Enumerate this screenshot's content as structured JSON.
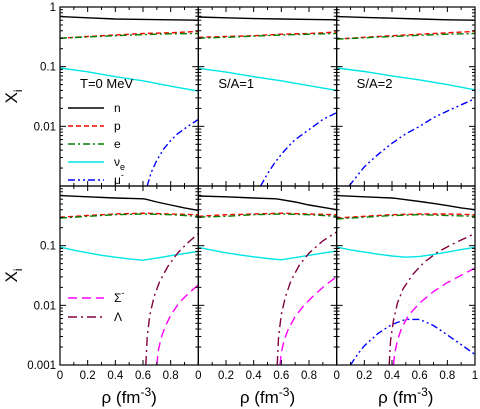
{
  "chart_data": {
    "type": "line",
    "panel_grid": {
      "rows": 2,
      "cols": 3
    },
    "ylabel": "X",
    "ylabel_sub": "i",
    "xlabel": "ρ (fm",
    "xlabel_sup": "-3",
    "xlabel_close": ")",
    "xlim": [
      0,
      1
    ],
    "ylim": [
      0.001,
      1
    ],
    "yscale": "log",
    "x_ticks": [
      0,
      0.2,
      0.4,
      0.6,
      0.8,
      1
    ],
    "x_tick_labels": [
      "0",
      "0.2",
      "0.4",
      "0.6",
      "0.8",
      "1"
    ],
    "y_ticks": [
      0.001,
      0.01,
      0.1,
      1
    ],
    "y_tick_labels": [
      "0.001",
      "0.01",
      "0.1",
      "1"
    ],
    "x_tick_labels_shown": [
      [
        "0",
        "0.2",
        "0.4",
        "0.6",
        "0.8"
      ],
      [
        "0",
        "0.2",
        "0.4",
        "0.6",
        "0.8"
      ],
      [
        "0",
        "0.2",
        "0.4",
        "0.6",
        "0.8",
        "1"
      ]
    ],
    "y_tick_labels_shown": [
      [
        "0.01",
        "0.1",
        "1"
      ],
      [
        "0.001",
        "0.01",
        "0.1"
      ]
    ],
    "panel_labels": [
      "T=0 MeV",
      "S/A=1",
      "S/A=2"
    ],
    "legends": [
      {
        "panel": [
          0,
          0
        ],
        "entries": [
          {
            "label": "n",
            "series": "n"
          },
          {
            "label": "p",
            "series": "p"
          },
          {
            "label": "e",
            "series": "e"
          },
          {
            "label": "ν",
            "sub": "e",
            "series": "nu_e"
          },
          {
            "label": "μ",
            "sup": "-",
            "series": "mu"
          }
        ]
      },
      {
        "panel": [
          1,
          0
        ],
        "entries": [
          {
            "label": "Σ",
            "sup": "-",
            "series": "sigma"
          },
          {
            "label": "Λ",
            "series": "lambda"
          }
        ]
      }
    ],
    "series_styles": {
      "n": {
        "color": "#000000",
        "dash": ""
      },
      "p": {
        "color": "#ff0000",
        "dash": "5,3"
      },
      "e": {
        "color": "#008000",
        "dash": "7,3,2,3"
      },
      "nu_e": {
        "color": "#00e5e5",
        "dash": ""
      },
      "mu": {
        "color": "#0000ff",
        "dash": "7,3,2,3,2,3"
      },
      "sigma": {
        "color": "#ff00ff",
        "dash": "9,5"
      },
      "lambda": {
        "color": "#800040",
        "dash": "9,4,2,4"
      }
    },
    "panels": [
      {
        "row": 0,
        "col": 0,
        "series": [
          {
            "key": "n",
            "x": [
              0,
              0.2,
              0.4,
              0.6,
              0.8,
              1
            ],
            "y": [
              0.69,
              0.66,
              0.63,
              0.62,
              0.61,
              0.6
            ]
          },
          {
            "key": "p",
            "x": [
              0,
              0.2,
              0.4,
              0.6,
              0.8,
              1
            ],
            "y": [
              0.3,
              0.32,
              0.34,
              0.36,
              0.37,
              0.39
            ]
          },
          {
            "key": "e",
            "x": [
              0,
              0.2,
              0.4,
              0.6,
              0.8,
              1
            ],
            "y": [
              0.3,
              0.315,
              0.33,
              0.345,
              0.355,
              0.36
            ]
          },
          {
            "key": "nu_e",
            "x": [
              0,
              0.2,
              0.4,
              0.6,
              0.8,
              1
            ],
            "y": [
              0.095,
              0.082,
              0.068,
              0.058,
              0.047,
              0.039
            ]
          },
          {
            "key": "mu",
            "x": [
              0.63,
              0.66,
              0.7,
              0.75,
              0.8,
              0.85,
              0.9,
              0.95,
              1
            ],
            "y": [
              0.001,
              0.0017,
              0.0027,
              0.0042,
              0.0058,
              0.0075,
              0.0091,
              0.011,
              0.013
            ]
          }
        ]
      },
      {
        "row": 0,
        "col": 1,
        "series": [
          {
            "key": "n",
            "x": [
              0,
              0.2,
              0.4,
              0.6,
              0.8,
              1
            ],
            "y": [
              0.68,
              0.66,
              0.64,
              0.63,
              0.62,
              0.61
            ]
          },
          {
            "key": "p",
            "x": [
              0,
              0.2,
              0.4,
              0.6,
              0.8,
              1
            ],
            "y": [
              0.31,
              0.32,
              0.33,
              0.35,
              0.36,
              0.38
            ]
          },
          {
            "key": "e",
            "x": [
              0,
              0.2,
              0.4,
              0.6,
              0.8,
              1
            ],
            "y": [
              0.3,
              0.31,
              0.325,
              0.34,
              0.35,
              0.36
            ]
          },
          {
            "key": "nu_e",
            "x": [
              0,
              0.2,
              0.4,
              0.6,
              0.8,
              1
            ],
            "y": [
              0.094,
              0.081,
              0.068,
              0.058,
              0.048,
              0.04
            ]
          },
          {
            "key": "mu",
            "x": [
              0.45,
              0.5,
              0.55,
              0.6,
              0.65,
              0.7,
              0.8,
              0.9,
              1
            ],
            "y": [
              0.001,
              0.0016,
              0.0024,
              0.0034,
              0.0046,
              0.006,
              0.0088,
              0.013,
              0.017
            ]
          }
        ]
      },
      {
        "row": 0,
        "col": 2,
        "series": [
          {
            "key": "n",
            "x": [
              0,
              0.2,
              0.4,
              0.6,
              0.8,
              1
            ],
            "y": [
              0.69,
              0.67,
              0.65,
              0.63,
              0.61,
              0.6
            ]
          },
          {
            "key": "p",
            "x": [
              0,
              0.2,
              0.4,
              0.6,
              0.8,
              1
            ],
            "y": [
              0.29,
              0.31,
              0.33,
              0.35,
              0.37,
              0.39
            ]
          },
          {
            "key": "e",
            "x": [
              0,
              0.2,
              0.4,
              0.6,
              0.8,
              1
            ],
            "y": [
              0.29,
              0.305,
              0.32,
              0.335,
              0.35,
              0.36
            ]
          },
          {
            "key": "nu_e",
            "x": [
              0,
              0.2,
              0.4,
              0.6,
              0.8,
              1
            ],
            "y": [
              0.095,
              0.083,
              0.07,
              0.06,
              0.05,
              0.041
            ]
          },
          {
            "key": "mu",
            "x": [
              0.09,
              0.15,
              0.2,
              0.3,
              0.4,
              0.5,
              0.6,
              0.7,
              0.8,
              0.9,
              1
            ],
            "y": [
              0.001,
              0.0015,
              0.0021,
              0.0034,
              0.0052,
              0.0075,
              0.01,
              0.014,
              0.018,
              0.023,
              0.029
            ]
          }
        ]
      },
      {
        "row": 1,
        "col": 0,
        "series": [
          {
            "key": "n",
            "x": [
              0,
              0.2,
              0.4,
              0.6,
              0.62,
              0.7,
              0.8,
              0.9,
              1
            ],
            "y": [
              0.69,
              0.66,
              0.63,
              0.61,
              0.6,
              0.54,
              0.48,
              0.43,
              0.39
            ]
          },
          {
            "key": "p",
            "x": [
              0,
              0.2,
              0.4,
              0.6,
              0.8,
              1
            ],
            "y": [
              0.3,
              0.32,
              0.34,
              0.35,
              0.34,
              0.33
            ]
          },
          {
            "key": "e",
            "x": [
              0,
              0.2,
              0.4,
              0.6,
              0.8,
              1
            ],
            "y": [
              0.29,
              0.31,
              0.33,
              0.34,
              0.33,
              0.31
            ]
          },
          {
            "key": "nu_e",
            "x": [
              0,
              0.1,
              0.2,
              0.3,
              0.4,
              0.5,
              0.6,
              0.7,
              0.8,
              0.9,
              1
            ],
            "y": [
              0.095,
              0.084,
              0.076,
              0.069,
              0.064,
              0.06,
              0.057,
              0.062,
              0.068,
              0.074,
              0.08
            ]
          },
          {
            "key": "lambda",
            "x": [
              0.62,
              0.63,
              0.65,
              0.68,
              0.72,
              0.78,
              0.85,
              0.92,
              1
            ],
            "y": [
              0.001,
              0.003,
              0.007,
              0.014,
              0.025,
              0.045,
              0.075,
              0.11,
              0.16
            ]
          },
          {
            "key": "sigma",
            "x": [
              0.7,
              0.71,
              0.73,
              0.76,
              0.8,
              0.86,
              0.93,
              1
            ],
            "y": [
              0.001,
              0.0017,
              0.0028,
              0.0044,
              0.0068,
              0.011,
              0.016,
              0.022
            ]
          }
        ]
      },
      {
        "row": 1,
        "col": 1,
        "series": [
          {
            "key": "n",
            "x": [
              0,
              0.2,
              0.4,
              0.56,
              0.58,
              0.7,
              0.8,
              0.9,
              1
            ],
            "y": [
              0.68,
              0.66,
              0.63,
              0.61,
              0.6,
              0.54,
              0.48,
              0.44,
              0.4
            ]
          },
          {
            "key": "p",
            "x": [
              0,
              0.2,
              0.4,
              0.6,
              0.8,
              1
            ],
            "y": [
              0.31,
              0.33,
              0.34,
              0.35,
              0.34,
              0.33
            ]
          },
          {
            "key": "e",
            "x": [
              0,
              0.2,
              0.4,
              0.6,
              0.8,
              1
            ],
            "y": [
              0.3,
              0.31,
              0.33,
              0.34,
              0.33,
              0.31
            ]
          },
          {
            "key": "nu_e",
            "x": [
              0,
              0.1,
              0.2,
              0.3,
              0.4,
              0.5,
              0.6,
              0.7,
              0.8,
              0.9,
              1
            ],
            "y": [
              0.094,
              0.084,
              0.076,
              0.07,
              0.065,
              0.061,
              0.058,
              0.063,
              0.069,
              0.075,
              0.081
            ]
          },
          {
            "key": "lambda",
            "x": [
              0.57,
              0.58,
              0.6,
              0.63,
              0.67,
              0.73,
              0.8,
              0.9,
              1
            ],
            "y": [
              0.001,
              0.003,
              0.007,
              0.014,
              0.026,
              0.047,
              0.075,
              0.12,
              0.17
            ]
          },
          {
            "key": "sigma",
            "x": [
              0.59,
              0.6,
              0.62,
              0.65,
              0.7,
              0.76,
              0.84,
              0.92,
              1
            ],
            "y": [
              0.001,
              0.0016,
              0.0026,
              0.004,
              0.0065,
              0.0098,
              0.015,
              0.022,
              0.03
            ]
          }
        ]
      },
      {
        "row": 1,
        "col": 2,
        "series": [
          {
            "key": "n",
            "x": [
              0,
              0.2,
              0.4,
              0.43,
              0.5,
              0.6,
              0.7,
              0.8,
              0.9,
              1
            ],
            "y": [
              0.69,
              0.66,
              0.63,
              0.62,
              0.59,
              0.55,
              0.51,
              0.47,
              0.43,
              0.4
            ]
          },
          {
            "key": "p",
            "x": [
              0,
              0.2,
              0.4,
              0.6,
              0.8,
              1
            ],
            "y": [
              0.29,
              0.31,
              0.33,
              0.34,
              0.34,
              0.33
            ]
          },
          {
            "key": "e",
            "x": [
              0,
              0.2,
              0.4,
              0.6,
              0.8,
              1
            ],
            "y": [
              0.28,
              0.3,
              0.32,
              0.33,
              0.32,
              0.31
            ]
          },
          {
            "key": "nu_e",
            "x": [
              0,
              0.1,
              0.2,
              0.3,
              0.4,
              0.5,
              0.6,
              0.7,
              0.8,
              0.9,
              1
            ],
            "y": [
              0.095,
              0.085,
              0.078,
              0.072,
              0.067,
              0.064,
              0.066,
              0.071,
              0.078,
              0.086,
              0.094
            ]
          },
          {
            "key": "mu",
            "x": [
              0.1,
              0.15,
              0.2,
              0.3,
              0.4,
              0.5,
              0.6,
              0.7,
              0.8,
              0.9,
              1
            ],
            "y": [
              0.001,
              0.0015,
              0.0021,
              0.0034,
              0.0048,
              0.0058,
              0.0058,
              0.0046,
              0.0032,
              0.0022,
              0.0015
            ]
          },
          {
            "key": "lambda",
            "x": [
              0.38,
              0.39,
              0.41,
              0.44,
              0.48,
              0.55,
              0.63,
              0.73,
              0.85,
              1
            ],
            "y": [
              0.001,
              0.0026,
              0.0055,
              0.011,
              0.019,
              0.033,
              0.052,
              0.078,
              0.11,
              0.16
            ]
          },
          {
            "key": "sigma",
            "x": [
              0.41,
              0.42,
              0.44,
              0.47,
              0.52,
              0.6,
              0.7,
              0.8,
              0.9,
              1
            ],
            "y": [
              0.001,
              0.0016,
              0.0026,
              0.0042,
              0.0068,
              0.011,
              0.017,
              0.024,
              0.032,
              0.042
            ]
          }
        ]
      }
    ]
  }
}
